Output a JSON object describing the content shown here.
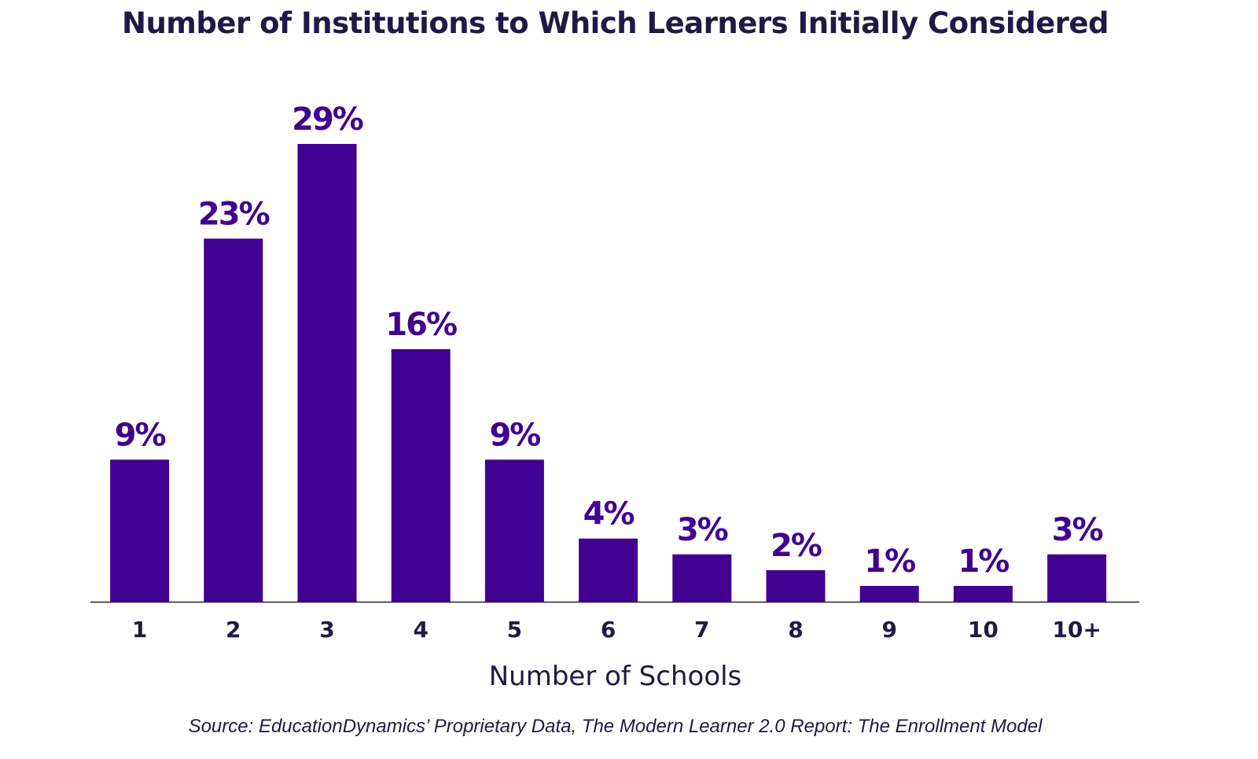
{
  "chart_data": {
    "type": "bar",
    "title": "Number of Institutions to Which Learners Initially Considered",
    "xlabel": "Number of Schools",
    "ylabel": "",
    "categories": [
      "1",
      "2",
      "3",
      "4",
      "5",
      "6",
      "7",
      "8",
      "9",
      "10",
      "10+"
    ],
    "values": [
      9,
      23,
      29,
      16,
      9,
      4,
      3,
      2,
      1,
      1,
      3
    ],
    "data_labels": [
      "9%",
      "23%",
      "29%",
      "16%",
      "9%",
      "4%",
      "3%",
      "2%",
      "1%",
      "1%",
      "3%"
    ],
    "ylim": [
      0,
      29
    ],
    "grid": false,
    "legend": "none",
    "bar_color": "#420090",
    "text_color": "#1f1a45"
  },
  "source": "Source: EducationDynamics’ Proprietary Data, The Modern Learner 2.0 Report: The Enrollment Model"
}
